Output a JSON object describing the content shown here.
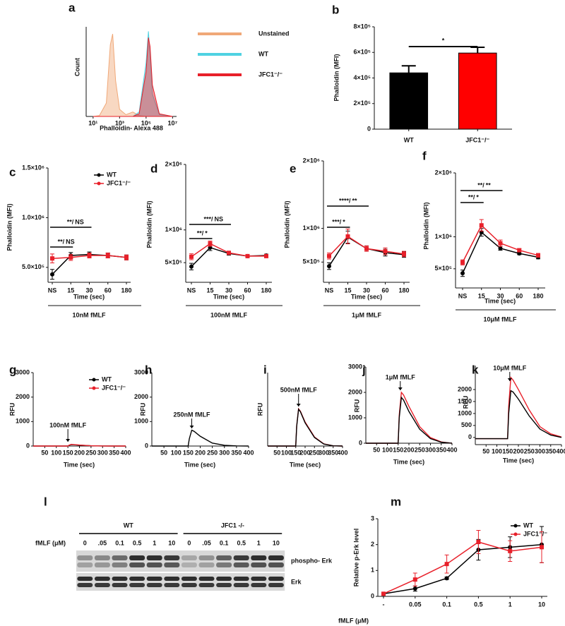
{
  "chart_data": [
    {
      "type": "area",
      "panel": "a",
      "xlabel": "Phalloidin- Alexa 488",
      "ylabel": "Count",
      "xlog": true,
      "xlim": [
        3,
        20000000
      ],
      "xticks": [
        {
          "value": 10,
          "label": "10¹"
        },
        {
          "value": 1000,
          "label": "10³"
        },
        {
          "value": 100000,
          "label": "10⁵"
        },
        {
          "value": 10000000,
          "label": "10⁷"
        }
      ],
      "ylim": [
        0,
        100
      ],
      "x": [
        10,
        30,
        100,
        200,
        300,
        500,
        1000,
        3000,
        10000,
        30000,
        100000,
        150000,
        200000,
        300000,
        1000000,
        10000000
      ],
      "series": [
        {
          "name": "Unstained",
          "color": "#f0a878",
          "values": [
            0,
            1,
            15,
            80,
            92,
            40,
            8,
            2,
            5,
            1,
            0,
            0,
            0,
            0,
            0,
            0
          ]
        },
        {
          "name": "WT",
          "color": "#4fd2e2",
          "values": [
            0,
            0,
            0,
            0,
            0,
            0,
            0,
            0,
            0,
            5,
            60,
            95,
            70,
            25,
            2,
            0
          ]
        },
        {
          "name": "JFC1⁻/⁻",
          "color": "#e8202a",
          "values": [
            0,
            0,
            0,
            0,
            0,
            0,
            0,
            0,
            0,
            3,
            50,
            88,
            78,
            35,
            3,
            0
          ]
        }
      ],
      "legend": "right"
    },
    {
      "type": "bar",
      "panel": "b",
      "ylabel": "Phalloidin (MFI)",
      "categories": [
        "WT",
        "JFC1⁻/⁻"
      ],
      "values": [
        440000,
        595000
      ],
      "errors": [
        55000,
        45000
      ],
      "colors": [
        "#000000",
        "#ff0000"
      ],
      "ylim": [
        0,
        800000
      ],
      "yticks": [
        0,
        {
          "value": 200000,
          "label": "2×10⁵"
        },
        {
          "value": 400000,
          "label": "4×10⁵"
        },
        {
          "value": 600000,
          "label": "6×10⁵"
        },
        {
          "value": 800000,
          "label": "8×10⁵"
        }
      ],
      "annotation": "*"
    },
    {
      "type": "line",
      "panel": "c",
      "ylabel": "Phalloidin (MFI)",
      "xlabel": "Time (sec)",
      "treatment": "10nM fMLF",
      "categories": [
        "NS",
        "15",
        "30",
        "60",
        "180"
      ],
      "ylim": [
        350000,
        1500000
      ],
      "yticks": [
        {
          "value": 500000,
          "label": "5.0×10⁵"
        },
        {
          "value": 1000000,
          "label": "1.0×10⁶"
        },
        {
          "value": 1500000,
          "label": "1.5×10⁶"
        }
      ],
      "series": [
        {
          "name": "WT",
          "color": "#000000",
          "values": [
            430000,
            620000,
            630000,
            620000,
            600000
          ],
          "errors": [
            50000,
            30000,
            25000,
            25000,
            25000
          ]
        },
        {
          "name": "JFC1⁻/⁻",
          "color": "#e8202a",
          "values": [
            590000,
            600000,
            620000,
            620000,
            600000
          ],
          "errors": [
            45000,
            30000,
            25000,
            25000,
            25000
          ]
        }
      ],
      "legend": "upper-right",
      "brackets": [
        {
          "left": "**/",
          "right": "NS"
        },
        {
          "left": "**/",
          "right": "NS"
        }
      ]
    },
    {
      "type": "line",
      "panel": "d",
      "ylabel": "Phalloidin (MFI)",
      "xlabel": "Time (sec)",
      "treatment": "100nM fMLF",
      "categories": [
        "NS",
        "15",
        "30",
        "60",
        "180"
      ],
      "ylim": [
        200000,
        2000000
      ],
      "yticks": [
        {
          "value": 500000,
          "label": "5×10⁵"
        },
        {
          "value": 1000000,
          "label": "1×10⁶"
        },
        {
          "value": 2000000,
          "label": "2×10⁶"
        }
      ],
      "series": [
        {
          "color": "#000000",
          "values": [
            440000,
            730000,
            640000,
            600000,
            610000
          ],
          "errors": [
            50000,
            45000,
            25000,
            20000,
            20000
          ]
        },
        {
          "color": "#e8202a",
          "values": [
            590000,
            790000,
            650000,
            600000,
            600000
          ],
          "errors": [
            45000,
            40000,
            25000,
            20000,
            20000
          ]
        }
      ],
      "brackets": [
        {
          "left": "***/",
          "right": "NS"
        },
        {
          "left": "**/",
          "right": "*"
        }
      ]
    },
    {
      "type": "line",
      "panel": "e",
      "ylabel": "Phalloidin (MFI)",
      "xlabel": "Time (sec)",
      "treatment": "1μM fMLF",
      "categories": [
        "NS",
        "15",
        "30",
        "60",
        "180"
      ],
      "ylim": [
        200000,
        2000000
      ],
      "yticks": [
        {
          "value": 500000,
          "label": "5×10⁵"
        },
        {
          "value": 1000000,
          "label": "1×10⁶"
        },
        {
          "value": 2000000,
          "label": "2×10⁶"
        }
      ],
      "series": [
        {
          "color": "#000000",
          "values": [
            440000,
            870000,
            700000,
            640000,
            610000
          ],
          "errors": [
            50000,
            90000,
            40000,
            50000,
            40000
          ]
        },
        {
          "color": "#e8202a",
          "values": [
            590000,
            880000,
            700000,
            660000,
            620000
          ],
          "errors": [
            45000,
            110000,
            40000,
            50000,
            40000
          ]
        }
      ],
      "brackets": [
        {
          "left": "****/",
          "right": "**"
        },
        {
          "left": "***/",
          "right": "*"
        }
      ]
    },
    {
      "type": "line",
      "panel": "f",
      "ylabel": "Phalloidin (MFI)",
      "xlabel": "Time (sec)",
      "treatment": "10μM fMLF",
      "categories": [
        "NS",
        "15",
        "30",
        "60",
        "180"
      ],
      "ylim": [
        200000,
        2000000
      ],
      "yticks": [
        {
          "value": 500000,
          "label": "5×10⁵"
        },
        {
          "value": 1000000,
          "label": "1×10⁶"
        },
        {
          "value": 2000000,
          "label": "2×10⁶"
        }
      ],
      "series": [
        {
          "color": "#000000",
          "values": [
            430000,
            1070000,
            820000,
            740000,
            680000
          ],
          "errors": [
            50000,
            60000,
            30000,
            20000,
            25000
          ]
        },
        {
          "color": "#e8202a",
          "values": [
            600000,
            1180000,
            900000,
            790000,
            710000
          ],
          "errors": [
            40000,
            90000,
            50000,
            25000,
            30000
          ]
        }
      ],
      "brackets": [
        {
          "left": "**/",
          "right": "**"
        },
        {
          "left": "**/",
          "right": "*"
        }
      ]
    },
    {
      "type": "line",
      "panel": "g",
      "ylabel": "RFU",
      "xlabel": "Time (sec)",
      "annotation": "100nM fMLF",
      "x": [
        0,
        100,
        150,
        155,
        165,
        175,
        200,
        250,
        300,
        350,
        400
      ],
      "xlim": [
        0,
        400
      ],
      "xticks": [
        50,
        100,
        150,
        200,
        250,
        300,
        350,
        400
      ],
      "ylim": [
        0,
        3000
      ],
      "yticks": [
        0,
        1000,
        2000,
        3000
      ],
      "series": [
        {
          "name": "WT",
          "color": "#000000",
          "values": [
            0,
            0,
            0,
            30,
            60,
            55,
            35,
            10,
            3,
            0,
            0
          ]
        },
        {
          "name": "JFC1⁻/⁻",
          "color": "#e8202a",
          "values": [
            0,
            0,
            0,
            35,
            70,
            60,
            40,
            12,
            3,
            0,
            0
          ]
        }
      ],
      "legend": "upper-right"
    },
    {
      "type": "line",
      "panel": "h",
      "ylabel": "RFU",
      "xlabel": "Time (sec)",
      "annotation": "250nM fMLF",
      "x": [
        0,
        100,
        150,
        155,
        165,
        175,
        200,
        250,
        300,
        350,
        400
      ],
      "xlim": [
        0,
        400
      ],
      "xticks": [
        50,
        100,
        150,
        200,
        250,
        300,
        350,
        400
      ],
      "ylim": [
        0,
        3000
      ],
      "yticks": [
        0,
        1000,
        2000,
        3000
      ],
      "series": [
        {
          "color": "#000000",
          "values": [
            0,
            0,
            0,
            300,
            650,
            600,
            400,
            120,
            30,
            5,
            0
          ]
        }
      ]
    },
    {
      "type": "line",
      "panel": "i",
      "ylabel": "RFU",
      "xlabel": "Time (sec)",
      "annotation": "500nM fMLF",
      "x": [
        0,
        100,
        150,
        155,
        165,
        175,
        200,
        250,
        300,
        350,
        400
      ],
      "xlim": [
        0,
        400
      ],
      "xticks": [
        50,
        100,
        150,
        200,
        250,
        300,
        350,
        400
      ],
      "ylim": [
        0,
        3000
      ],
      "series": [
        {
          "color": "#e8202a",
          "values": [
            0,
            0,
            0,
            820,
            1520,
            1420,
            980,
            370,
            90,
            10,
            0
          ]
        },
        {
          "color": "#000000",
          "values": [
            0,
            0,
            0,
            800,
            1500,
            1400,
            950,
            350,
            80,
            10,
            0
          ]
        }
      ]
    },
    {
      "type": "line",
      "panel": "j",
      "ylabel": "RFU",
      "xlabel": "Time (sec)",
      "annotation": "1μM fMLF",
      "x": [
        0,
        100,
        150,
        155,
        165,
        175,
        200,
        250,
        300,
        350,
        400
      ],
      "xlim": [
        0,
        400
      ],
      "xticks": [
        50,
        100,
        150,
        200,
        250,
        300,
        350,
        400
      ],
      "ylim": [
        0,
        3000
      ],
      "yticks": [
        0,
        1000,
        2000,
        3000
      ],
      "series": [
        {
          "color": "#e8202a",
          "values": [
            0,
            0,
            0,
            1100,
            2000,
            1900,
            1450,
            650,
            220,
            50,
            0
          ]
        },
        {
          "color": "#000000",
          "values": [
            0,
            0,
            0,
            1000,
            1800,
            1700,
            1250,
            550,
            180,
            40,
            0
          ]
        }
      ]
    },
    {
      "type": "line",
      "panel": "k",
      "ylabel": "RFU",
      "xlabel": "Time (sec)",
      "annotation": "10μM fMLF",
      "x": [
        0,
        100,
        150,
        155,
        165,
        175,
        200,
        250,
        300,
        350,
        400
      ],
      "xlim": [
        0,
        400
      ],
      "xticks": [
        50,
        100,
        150,
        200,
        250,
        300,
        350,
        400
      ],
      "ylim": [
        -300,
        3000
      ],
      "yticks": [
        0,
        500,
        1000,
        1500,
        2000
      ],
      "series": [
        {
          "color": "#e8202a",
          "values": [
            -50,
            -50,
            -50,
            1300,
            2500,
            2400,
            2000,
            1150,
            450,
            150,
            20
          ]
        },
        {
          "color": "#000000",
          "values": [
            -50,
            -50,
            -50,
            1000,
            1950,
            1900,
            1600,
            900,
            350,
            100,
            0
          ]
        }
      ]
    },
    {
      "type": "line",
      "panel": "m",
      "ylabel": "Relative p-Erk level",
      "xlabel": "fMLF (μM)",
      "categories": [
        "-",
        "0.05",
        "0.1",
        "0.5",
        "1",
        "10"
      ],
      "ylim": [
        0,
        3
      ],
      "yticks": [
        0,
        1,
        2,
        3
      ],
      "series": [
        {
          "name": "WT",
          "color": "#000000",
          "values": [
            0.1,
            0.3,
            0.7,
            1.8,
            1.9,
            2.0
          ],
          "errors": [
            0.05,
            0.1,
            0.05,
            0.4,
            0.4,
            0.7
          ]
        },
        {
          "name": "JFC1⁻/⁻",
          "color": "#e8202a",
          "values": [
            0.1,
            0.65,
            1.25,
            2.1,
            1.75,
            1.9
          ],
          "errors": [
            0.05,
            0.25,
            0.35,
            0.45,
            0.4,
            0.6
          ]
        }
      ],
      "legend": "upper-right"
    }
  ],
  "blot": {
    "panel": "l",
    "groups": [
      "WT",
      "JFC1 -/-"
    ],
    "dose_label": "fMLF (μM)",
    "lanes": [
      "0",
      ".05",
      "0.1",
      "0.5",
      "1",
      "10",
      "0",
      ".05",
      "0.1",
      "0.5",
      "1",
      "10"
    ],
    "rows": [
      "phospho- Erk",
      "Erk"
    ]
  }
}
